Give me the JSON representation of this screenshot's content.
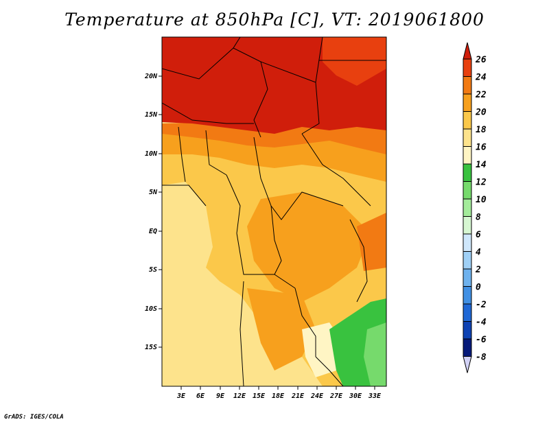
{
  "title": "Temperature at 850hPa [C], VT: 2019061800",
  "credit": "GrADS: IGES/COLA",
  "map": {
    "lon_range": [
      0,
      36
    ],
    "lat_range": [
      -20,
      25
    ],
    "lon_ticks": [
      "3E",
      "6E",
      "9E",
      "12E",
      "15E",
      "18E",
      "21E",
      "24E",
      "27E",
      "30E",
      "33E"
    ],
    "lat_ticks": [
      "20N",
      "15N",
      "10N",
      "5N",
      "EQ",
      "5S",
      "10S",
      "15S"
    ],
    "variable": "Temperature at 850hPa",
    "units": "C",
    "valid_time": "2019061800"
  },
  "colorbar": {
    "labels": [
      "26",
      "24",
      "22",
      "20",
      "18",
      "16",
      "14",
      "12",
      "10",
      "8",
      "6",
      "4",
      "2",
      "0",
      "-2",
      "-4",
      "-6",
      "-8"
    ],
    "colors": [
      "#d01e0b",
      "#e8400f",
      "#f27a13",
      "#f7a01d",
      "#fbc84a",
      "#fde38c",
      "#fff5c4",
      "#39c23f",
      "#76da6c",
      "#a4ec9b",
      "#d7f7d2",
      "#cfe7fb",
      "#9fd0f6",
      "#6eb2ee",
      "#4190e4",
      "#1f68d6",
      "#0e42b3",
      "#061a7a",
      "#d2d2f6"
    ]
  }
}
